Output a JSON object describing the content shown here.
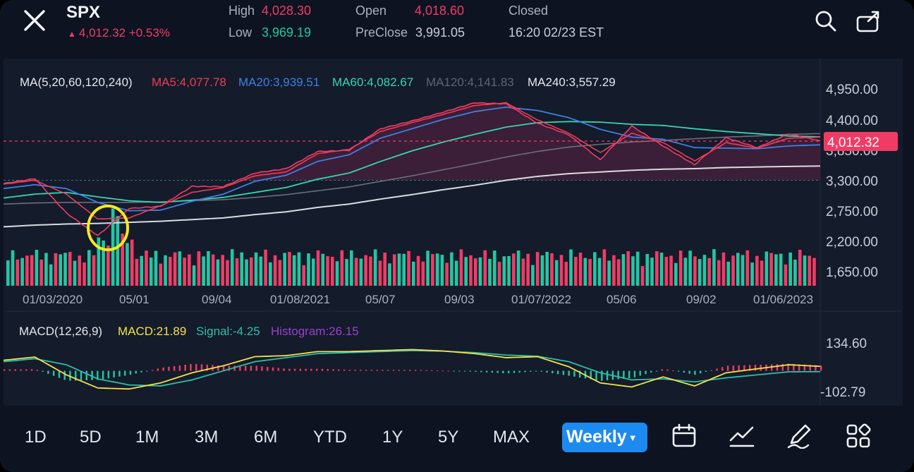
{
  "header": {
    "symbol": "SPX",
    "price_change": "4,012.32 +0.53%",
    "high_label": "High",
    "high_value": "4,028.30",
    "low_label": "Low",
    "low_value": "3,969.19",
    "open_label": "Open",
    "open_value": "4,018.60",
    "preclose_label": "PreClose",
    "preclose_value": "3,991.05",
    "status": "Closed",
    "timestamp": "16:20 02/23 EST",
    "icons": [
      "close-icon",
      "search-icon",
      "share-icon"
    ]
  },
  "ma_legend": {
    "label": "MA(5,20,60,120,240)",
    "ma5": "MA5:4,077.78",
    "ma20": "MA20:3,939.51",
    "ma60": "MA60:4,082.67",
    "ma120": "MA120:4,141.83",
    "ma240": "MA240:3,557.29"
  },
  "price_axis": [
    "4,950.00",
    "4,400.00",
    "3,850.00",
    "3,300.00",
    "2,750.00",
    "2,200.00",
    "1,650.00"
  ],
  "current_price_tag": "4,012.32",
  "date_axis": [
    "01/03/2020",
    "05/01",
    "09/04",
    "01/08/2021",
    "05/07",
    "09/03",
    "01/07/2022",
    "05/06",
    "09/02",
    "01/06/2023"
  ],
  "macd_legend": {
    "label": "MACD(12,26,9)",
    "macd": "MACD:21.89",
    "signal": "Signal:-4.25",
    "histogram": "Histogram:26.15"
  },
  "macd_axis": [
    "134.60",
    "-102.79"
  ],
  "timeframes": [
    "1D",
    "5D",
    "1M",
    "3M",
    "6M",
    "YTD",
    "1Y",
    "5Y",
    "MAX"
  ],
  "interval_selected": "Weekly",
  "bottom_icons": [
    "calendar-icon",
    "indicator-icon",
    "draw-icon",
    "layout-grid-icon"
  ],
  "colors": {
    "background": "#0d1321",
    "panel": "#141b2b",
    "up": "#22c7a3",
    "down": "#f23b64",
    "ma5": "#ef3b55",
    "ma20": "#3f7fe0",
    "ma60": "#35d6b3",
    "ma120": "#6b6f7a",
    "ma240": "#d8dbe2",
    "macd": "#f5e04a",
    "signal": "#2bbfa8",
    "histogram": "#9b3fd0",
    "accent": "#1d8af0",
    "highlight_circle": "#f5ea1c"
  },
  "chart_data": {
    "type": "line",
    "x": [
      "01/03/2020",
      "02/07/2020",
      "03/13/2020",
      "03/20/2020",
      "04/10/2020",
      "05/01/2020",
      "06/05/2020",
      "07/10/2020",
      "09/04/2020",
      "11/06/2020",
      "01/08/2021",
      "03/05/2021",
      "05/07/2021",
      "07/09/2021",
      "09/03/2021",
      "11/05/2021",
      "01/07/2022",
      "03/04/2022",
      "05/06/2022",
      "06/17/2022",
      "08/12/2022",
      "09/02/2022",
      "10/14/2022",
      "12/02/2022",
      "01/06/2023",
      "02/03/2023",
      "02/23/2023"
    ],
    "ylim": [
      1650,
      4950
    ],
    "series": [
      {
        "name": "SPX",
        "values": [
          3240,
          3330,
          2710,
          2300,
          2790,
          2830,
          3190,
          3185,
          3430,
          3510,
          3820,
          3840,
          4230,
          4370,
          4530,
          4700,
          4680,
          4330,
          4120,
          3670,
          4280,
          3920,
          3580,
          4070,
          3890,
          4140,
          4012
        ]
      },
      {
        "name": "MA5",
        "values": [
          3230,
          3300,
          3050,
          2600,
          2620,
          2840,
          3080,
          3170,
          3380,
          3450,
          3780,
          3860,
          4180,
          4340,
          4490,
          4650,
          4700,
          4390,
          4150,
          3800,
          4150,
          3980,
          3650,
          3980,
          3880,
          4060,
          4078
        ]
      },
      {
        "name": "MA20",
        "values": [
          3150,
          3220,
          3150,
          2900,
          2750,
          2760,
          2920,
          3050,
          3280,
          3390,
          3640,
          3760,
          4060,
          4230,
          4400,
          4540,
          4620,
          4560,
          4430,
          4220,
          4080,
          4040,
          3890,
          3880,
          3870,
          3920,
          3940
        ]
      },
      {
        "name": "MA60",
        "values": [
          2980,
          3050,
          3080,
          3000,
          2930,
          2900,
          2940,
          2990,
          3080,
          3170,
          3320,
          3430,
          3640,
          3830,
          3990,
          4130,
          4260,
          4340,
          4360,
          4350,
          4310,
          4290,
          4230,
          4180,
          4140,
          4100,
          4083
        ]
      },
      {
        "name": "MA120",
        "values": [
          2870,
          2890,
          2900,
          2900,
          2900,
          2910,
          2930,
          2950,
          2990,
          3040,
          3110,
          3180,
          3280,
          3380,
          3490,
          3600,
          3720,
          3820,
          3900,
          3950,
          3990,
          4020,
          4050,
          4080,
          4100,
          4130,
          4142
        ]
      },
      {
        "name": "MA240",
        "values": [
          2460,
          2490,
          2510,
          2520,
          2540,
          2560,
          2590,
          2620,
          2680,
          2730,
          2810,
          2870,
          2960,
          3040,
          3130,
          3210,
          3300,
          3370,
          3420,
          3450,
          3480,
          3500,
          3510,
          3530,
          3540,
          3550,
          3557
        ]
      }
    ],
    "macd": {
      "ylim": [
        -102.79,
        134.6
      ],
      "macd": [
        52,
        68,
        -20,
        -85,
        -90,
        -60,
        -10,
        25,
        70,
        75,
        95,
        95,
        100,
        105,
        98,
        85,
        65,
        70,
        20,
        -60,
        -80,
        -30,
        -75,
        -10,
        10,
        30,
        21.89
      ],
      "signal": [
        45,
        60,
        30,
        -40,
        -70,
        -75,
        -45,
        0,
        45,
        65,
        85,
        90,
        95,
        100,
        97,
        90,
        78,
        72,
        45,
        -10,
        -45,
        -40,
        -55,
        -35,
        -20,
        -5,
        -4.25
      ],
      "histogram": [
        7,
        8,
        -50,
        -45,
        -20,
        15,
        35,
        25,
        25,
        10,
        10,
        5,
        5,
        5,
        1,
        -5,
        -13,
        -2,
        -25,
        -50,
        -35,
        10,
        -20,
        25,
        30,
        35,
        26.15
      ]
    }
  }
}
